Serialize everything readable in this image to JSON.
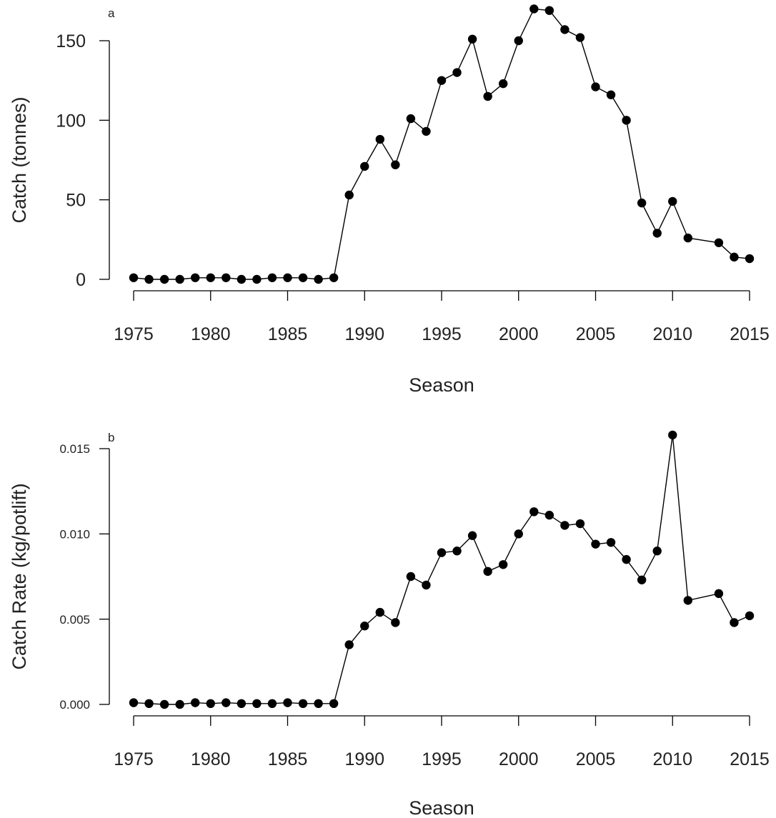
{
  "chart_data": [
    {
      "type": "line",
      "panel_label": "a",
      "xlabel": "Season",
      "ylabel": "Catch (tonnes)",
      "xlim": [
        1975,
        2015
      ],
      "ylim": [
        0,
        150
      ],
      "x_ticks": [
        "1975",
        "1980",
        "1985",
        "1990",
        "1995",
        "2000",
        "2005",
        "2010",
        "2015"
      ],
      "y_ticks": [
        "0",
        "50",
        "100",
        "150"
      ],
      "series": [
        {
          "x": [
            1975,
            1976,
            1977,
            1978,
            1979,
            1980,
            1981,
            1982,
            1983,
            1984,
            1985,
            1986,
            1987,
            1988,
            1989,
            1990,
            1991,
            1992,
            1993,
            1994,
            1995,
            1996,
            1997,
            1998,
            1999,
            2000,
            2001,
            2002,
            2003,
            2004,
            2005,
            2006,
            2007,
            2008,
            2009,
            2010,
            2011,
            2013,
            2014,
            2015
          ],
          "y": [
            1,
            0,
            0,
            0,
            1,
            1,
            1,
            0,
            0,
            1,
            1,
            1,
            0,
            1,
            53,
            71,
            88,
            72,
            101,
            93,
            125,
            130,
            151,
            115,
            123,
            150,
            170,
            169,
            157,
            152,
            121,
            116,
            100,
            48,
            29,
            49,
            26,
            23,
            14,
            13
          ]
        }
      ]
    },
    {
      "type": "line",
      "panel_label": "b",
      "xlabel": "Season",
      "ylabel": "Catch Rate (kg/potlift)",
      "xlim": [
        1975,
        2015
      ],
      "ylim": [
        0,
        0.015
      ],
      "x_ticks": [
        "1975",
        "1980",
        "1985",
        "1990",
        "1995",
        "2000",
        "2005",
        "2010",
        "2015"
      ],
      "y_ticks": [
        "0.000",
        "0.005",
        "0.010",
        "0.015"
      ],
      "series": [
        {
          "x": [
            1975,
            1976,
            1977,
            1978,
            1979,
            1980,
            1981,
            1982,
            1983,
            1984,
            1985,
            1986,
            1987,
            1988,
            1989,
            1990,
            1991,
            1992,
            1993,
            1994,
            1995,
            1996,
            1997,
            1998,
            1999,
            2000,
            2001,
            2002,
            2003,
            2004,
            2005,
            2006,
            2007,
            2008,
            2009,
            2010,
            2011,
            2013,
            2014,
            2015
          ],
          "y": [
            0.0001,
            5e-05,
            0,
            0,
            0.0001,
            5e-05,
            0.0001,
            5e-05,
            5e-05,
            5e-05,
            0.0001,
            5e-05,
            5e-05,
            5e-05,
            0.0035,
            0.0046,
            0.0054,
            0.0048,
            0.0075,
            0.007,
            0.0089,
            0.009,
            0.0099,
            0.0078,
            0.0082,
            0.01,
            0.0113,
            0.0111,
            0.0105,
            0.0106,
            0.0094,
            0.0095,
            0.0085,
            0.0073,
            0.009,
            0.0158,
            0.0061,
            0.0065,
            0.0048,
            0.0052
          ]
        }
      ]
    }
  ]
}
